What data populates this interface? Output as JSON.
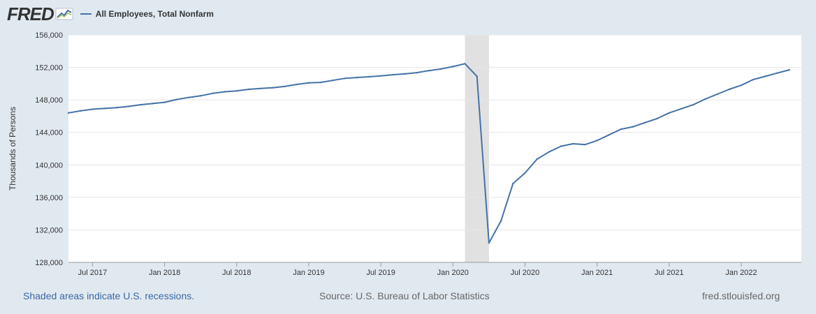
{
  "header": {
    "logo_text": "FRED",
    "series_label": "All Employees, Total Nonfarm",
    "series_color": "#4572a7"
  },
  "footer": {
    "recession_note": "Shaded areas indicate U.S. recessions.",
    "source": "Source: U.S. Bureau of Labor Statistics",
    "site": "fred.stlouisfed.org"
  },
  "chart_data": {
    "type": "line",
    "title": "All Employees, Total Nonfarm",
    "ylabel": "Thousands of Persons",
    "xlabel": "",
    "ylim": [
      128000,
      156000
    ],
    "yticks": [
      128000,
      132000,
      136000,
      140000,
      144000,
      148000,
      152000,
      156000
    ],
    "ytick_labels": [
      "128,000",
      "132,000",
      "136,000",
      "140,000",
      "144,000",
      "148,000",
      "152,000",
      "156,000"
    ],
    "xrange_months": [
      0,
      61
    ],
    "xticks": [
      {
        "month_index": 2,
        "label": "Jul 2017"
      },
      {
        "month_index": 8,
        "label": "Jan 2018"
      },
      {
        "month_index": 14,
        "label": "Jul 2018"
      },
      {
        "month_index": 20,
        "label": "Jan 2019"
      },
      {
        "month_index": 26,
        "label": "Jul 2019"
      },
      {
        "month_index": 32,
        "label": "Jan 2020"
      },
      {
        "month_index": 38,
        "label": "Jul 2020"
      },
      {
        "month_index": 44,
        "label": "Jan 2021"
      },
      {
        "month_index": 50,
        "label": "Jul 2021"
      },
      {
        "month_index": 56,
        "label": "Jan 2022"
      }
    ],
    "recession": {
      "start_month_index": 33.0,
      "end_month_index": 35.0
    },
    "grid": true,
    "series": [
      {
        "name": "All Employees, Total Nonfarm",
        "color": "#4572a7",
        "start": "May 2017",
        "values": [
          146400,
          146650,
          146850,
          146950,
          147050,
          147200,
          147400,
          147550,
          147700,
          148050,
          148300,
          148500,
          148800,
          149000,
          149100,
          149300,
          149400,
          149500,
          149650,
          149900,
          150100,
          150150,
          150400,
          150650,
          150750,
          150850,
          150950,
          151100,
          151200,
          151350,
          151600,
          151800,
          152100,
          152450,
          150900,
          130400,
          133100,
          137700,
          139000,
          140700,
          141600,
          142300,
          142600,
          142500,
          143000,
          143700,
          144400,
          144700,
          145200,
          145700,
          146400,
          146900,
          147400,
          148100,
          148700,
          149300,
          149800,
          150500,
          150900,
          151300,
          151700
        ]
      }
    ]
  }
}
